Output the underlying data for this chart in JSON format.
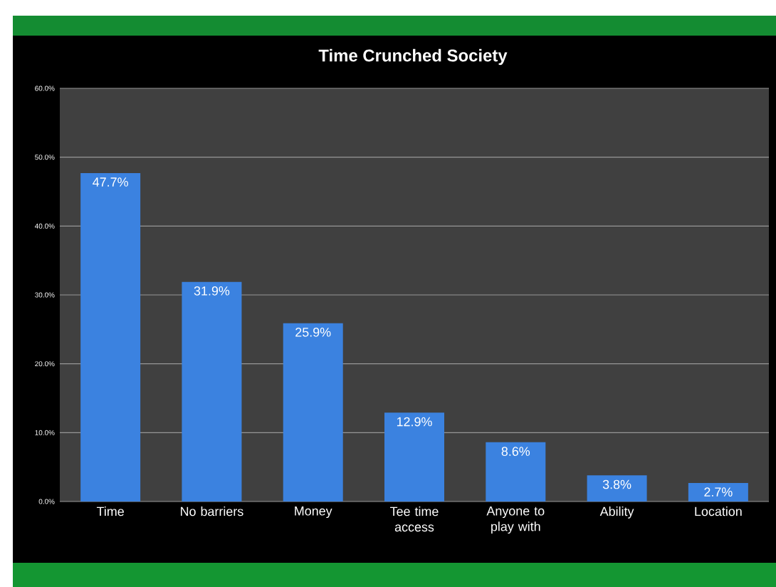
{
  "chart_data": {
    "type": "bar",
    "title": "Time Crunched Society",
    "categories": [
      "Time",
      "No barriers",
      "Money",
      "Tee time access",
      "Anyone to play with",
      "Ability",
      "Location"
    ],
    "values": [
      47.7,
      31.9,
      25.9,
      12.9,
      8.6,
      3.8,
      2.7
    ],
    "value_labels": [
      "47.7%",
      "31.9%",
      "25.9%",
      "12.9%",
      "8.6%",
      "3.8%",
      "2.7%"
    ],
    "color": "#3b82e0",
    "ylim": [
      0,
      60
    ],
    "yticks": [
      {
        "value": 0,
        "label": "0.0%"
      },
      {
        "value": 10,
        "label": "10.0%"
      },
      {
        "value": 20,
        "label": "20.0%"
      },
      {
        "value": 30,
        "label": "30.0%"
      },
      {
        "value": 40,
        "label": "40.0%"
      },
      {
        "value": 50,
        "label": "50.0%"
      },
      {
        "value": 60,
        "label": "60.0%"
      }
    ],
    "grid": "y"
  }
}
